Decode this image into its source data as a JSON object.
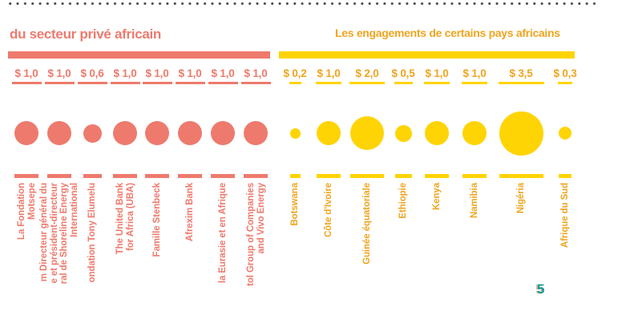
{
  "page": {
    "background": "#ffffff",
    "dotted_separator_color": "#4f4b48",
    "page_number": "5",
    "page_number_color": "#13989d",
    "page_number_shadow_color": "#cbb88a"
  },
  "chart_data": {
    "type": "scatter",
    "variant": "proportional-area bubble chart, two color-coded groups",
    "legend_position": "none",
    "grid": false,
    "value_format": "dollars, French decimal comma (e.g. $ 1,0)",
    "series": [
      {
        "name": "du secteur privé africain",
        "bar_color": "#ee7a6d",
        "bubble_color": "#ee7a6d",
        "text_color": "#ee7a6d",
        "underline_color": "#ee7a6d",
        "categories": [
          "La Fondation\nMotsepe",
          "m Directeur général du\ne et président-directeur\nral de Shoreline Energy\nInternational",
          "ondation Tony Elumelu",
          "The United Bank\nfor Africa (UBA)",
          "Famille Stenbeck",
          "Afrexim Bank",
          "la Eurasie et en Afrique",
          "tol Group of Companies\nand Vivo Energy"
        ],
        "values": [
          1.0,
          1.0,
          0.6,
          1.0,
          1.0,
          1.0,
          1.0,
          1.0
        ],
        "display_values": [
          "$ 1,0",
          "$ 1,0",
          "$ 0,6",
          "$ 1,0",
          "$ 1,0",
          "$ 1,0",
          "$ 1,0",
          "$ 1,0"
        ]
      },
      {
        "name": "Les engagements de certains pays africains",
        "bar_color": "#ffd405",
        "bubble_color": "#ffd405",
        "text_color": "#efa51f",
        "underline_color": "#ffd405",
        "categories": [
          "Botswana",
          "Côte d'Ivoire",
          "Guinée équatoriale",
          "Ethiopie",
          "Kenya",
          "Namibia",
          "Nigéria",
          "Afrique du Sud"
        ],
        "values": [
          0.2,
          1.0,
          2.0,
          0.5,
          1.0,
          1.0,
          3.5,
          0.3
        ],
        "display_values": [
          "$ 0,2",
          "$ 1,0",
          "$ 2,0",
          "$ 0,5",
          "$ 1,0",
          "$ 1,0",
          "$ 3,5",
          "$ 0,3"
        ]
      }
    ]
  }
}
